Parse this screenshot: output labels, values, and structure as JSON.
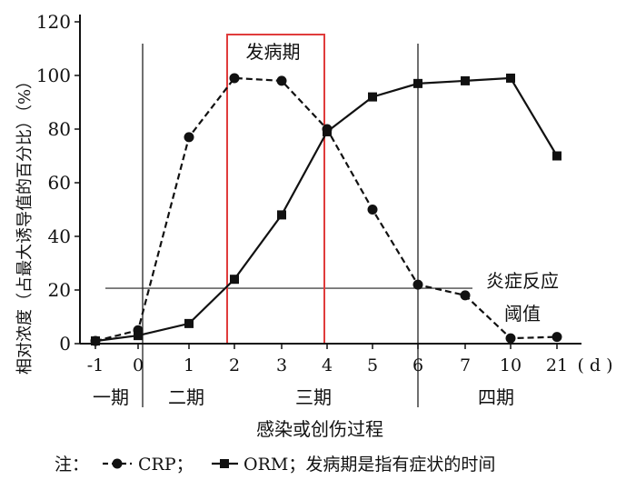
{
  "chart_data": {
    "type": "line",
    "x_categories": [
      "-1",
      "0",
      "1",
      "2",
      "3",
      "4",
      "5",
      "6",
      "7",
      "10",
      "21"
    ],
    "x_unit": "( d )",
    "xlabel": "感染或创伤过程",
    "ylabel": "相对浓度（占最大诱导值的百分比）（%）",
    "ylim": [
      0,
      120
    ],
    "y_ticks": [
      "0",
      "20",
      "40",
      "60",
      "80",
      "100",
      "120"
    ],
    "series": [
      {
        "name": "CRP",
        "style": "dashed",
        "marker": "circle",
        "color": "#111111",
        "values": [
          1,
          5,
          77,
          99,
          98,
          80,
          50,
          22,
          18,
          2,
          2.5
        ]
      },
      {
        "name": "ORM",
        "style": "solid",
        "marker": "square",
        "color": "#111111",
        "values": [
          1,
          3,
          7.5,
          24,
          48,
          79,
          92,
          97,
          98,
          99,
          70
        ]
      }
    ],
    "threshold": {
      "value": 22,
      "label_line1": "炎症反应",
      "label_line2": "阈值"
    },
    "highlight": {
      "label": "发病期",
      "from_index": 2,
      "to_index": 5,
      "color": "#e03c3c"
    },
    "phases": [
      {
        "label": "一期"
      },
      {
        "label": "二期"
      },
      {
        "label": "三期"
      },
      {
        "label": "四期"
      }
    ],
    "note": {
      "prefix": "注：",
      "crp": "CRP；",
      "orm": "ORM；发病期是指有症状的时间"
    }
  }
}
